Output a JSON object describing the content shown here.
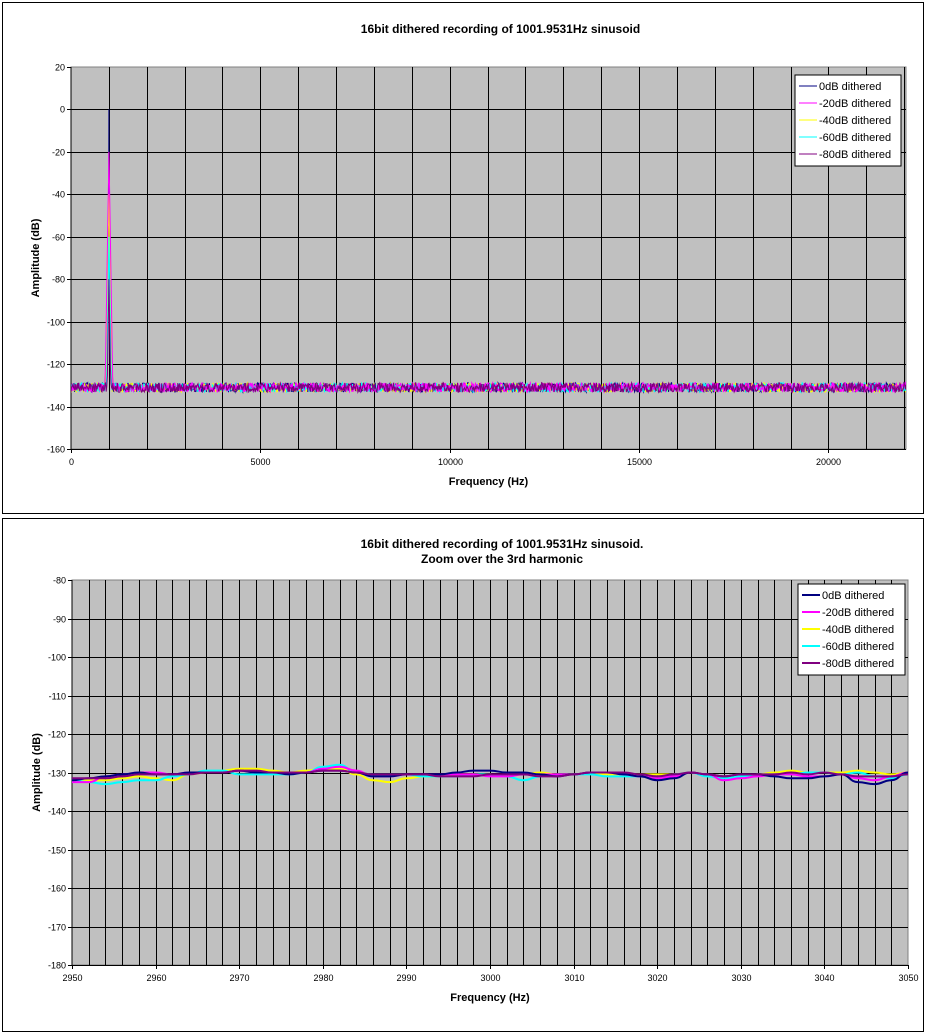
{
  "chart_data": [
    {
      "type": "line",
      "title": [
        "16bit dithered recording of 1001.9531Hz sinusoid"
      ],
      "xlabel": "Frequency (Hz)",
      "ylabel": "Amplitude (dB)",
      "xlim": [
        0,
        22050
      ],
      "ylim": [
        -160,
        20
      ],
      "xticks": [
        0,
        5000,
        10000,
        15000,
        20000
      ],
      "yticks": [
        -160,
        -140,
        -120,
        -100,
        -80,
        -60,
        -40,
        -20,
        0,
        20
      ],
      "x_grid_step": 1000,
      "grid": true,
      "legend_position": "top-right",
      "peak_frequency": 1001.9531,
      "noise_floor": -131,
      "series": [
        {
          "name": "0dB dithered",
          "color": "#000080",
          "peak": 0
        },
        {
          "name": "-20dB dithered",
          "color": "#ff00ff",
          "peak": -20
        },
        {
          "name": "-40dB dithered",
          "color": "#ffff00",
          "peak": -40
        },
        {
          "name": "-60dB dithered",
          "color": "#00ffff",
          "peak": -60
        },
        {
          "name": "-80dB dithered",
          "color": "#800080",
          "peak": -80
        }
      ]
    },
    {
      "type": "line",
      "title": [
        "16bit dithered recording of 1001.9531Hz sinusoid.",
        "Zoom over the 3rd harmonic"
      ],
      "xlabel": "Frequency (Hz)",
      "ylabel": "Amplitude (dB)",
      "xlim": [
        2950,
        3050
      ],
      "ylim": [
        -180,
        -80
      ],
      "xticks": [
        2950,
        2960,
        2970,
        2980,
        2990,
        3000,
        3010,
        3020,
        3030,
        3040,
        3050
      ],
      "yticks": [
        -180,
        -170,
        -160,
        -150,
        -140,
        -130,
        -120,
        -110,
        -100,
        -90,
        -80
      ],
      "x_grid_step": 2,
      "grid": true,
      "legend_position": "top-right",
      "x": [
        2950,
        2952,
        2954,
        2956,
        2958,
        2960,
        2962,
        2964,
        2966,
        2968,
        2970,
        2972,
        2974,
        2976,
        2978,
        2980,
        2982,
        2984,
        2986,
        2988,
        2990,
        2992,
        2994,
        2996,
        2998,
        3000,
        3002,
        3004,
        3006,
        3008,
        3010,
        3012,
        3014,
        3016,
        3018,
        3020,
        3022,
        3024,
        3026,
        3028,
        3030,
        3032,
        3034,
        3036,
        3038,
        3040,
        3042,
        3044,
        3046,
        3048,
        3050
      ],
      "series": [
        {
          "name": "0dB dithered",
          "color": "#000080",
          "values": [
            -132,
            -131.5,
            -131,
            -130.5,
            -130,
            -130.5,
            -130.5,
            -130,
            -130,
            -130,
            -129.5,
            -130,
            -130,
            -130.5,
            -130,
            -129.5,
            -129.5,
            -130,
            -131,
            -131,
            -130.5,
            -130.5,
            -130.5,
            -130,
            -129.5,
            -129.5,
            -130,
            -130,
            -130.5,
            -131,
            -130.5,
            -130,
            -130,
            -130.5,
            -131,
            -132,
            -131.5,
            -130,
            -130.5,
            -131,
            -130.5,
            -130.5,
            -131,
            -131.5,
            -131.5,
            -131,
            -130.5,
            -132.5,
            -133,
            -132,
            -130
          ]
        },
        {
          "name": "-20dB dithered",
          "color": "#ff00ff",
          "values": [
            -132.5,
            -132.5,
            -131,
            -130.5,
            -130,
            -130,
            -130.5,
            -130,
            -130,
            -130,
            -129.5,
            -130,
            -130,
            -130,
            -130,
            -129,
            -128.5,
            -129.5,
            -131,
            -131,
            -130.5,
            -130.5,
            -130.5,
            -130.5,
            -130.5,
            -131,
            -131,
            -130.5,
            -130.5,
            -130.5,
            -130.5,
            -130,
            -130,
            -130.5,
            -131,
            -131.5,
            -131,
            -130,
            -130.5,
            -132,
            -131.5,
            -131,
            -130.5,
            -130.5,
            -131,
            -131,
            -130.5,
            -131.5,
            -132,
            -131,
            -130
          ]
        },
        {
          "name": "-40dB dithered",
          "color": "#ffff00",
          "values": [
            -132,
            -132,
            -132,
            -131.5,
            -131,
            -131.5,
            -132,
            -130.5,
            -130,
            -129.5,
            -129,
            -129,
            -129.5,
            -130,
            -129.5,
            -129,
            -129,
            -130.5,
            -132,
            -132.5,
            -131.5,
            -131,
            -131,
            -130.5,
            -130.5,
            -130.5,
            -131,
            -130.5,
            -130,
            -130.5,
            -130.5,
            -130,
            -130.5,
            -130.5,
            -130.5,
            -130.5,
            -130.5,
            -130,
            -130.5,
            -131,
            -131,
            -130.5,
            -130,
            -129.5,
            -130,
            -130,
            -130,
            -129.5,
            -130,
            -130.5,
            -130
          ]
        },
        {
          "name": "-60dB dithered",
          "color": "#00ffff",
          "values": [
            -132,
            -132.5,
            -133,
            -132.5,
            -132,
            -132,
            -131,
            -130.5,
            -129.5,
            -129.5,
            -130.5,
            -130.5,
            -130.5,
            -130.5,
            -130,
            -128.5,
            -128,
            -130,
            -130.5,
            -130.5,
            -130.5,
            -131,
            -131,
            -131,
            -130.5,
            -130.5,
            -131,
            -132,
            -131,
            -130.5,
            -130.5,
            -130.5,
            -131,
            -131,
            -131,
            -131.5,
            -130.5,
            -130,
            -131,
            -131.5,
            -131,
            -130.5,
            -130.5,
            -130.5,
            -130,
            -130,
            -130.5,
            -130,
            -131,
            -131.5,
            -130.5
          ]
        },
        {
          "name": "-80dB dithered",
          "color": "#800080",
          "values": [
            -131.5,
            -131.5,
            -131.5,
            -131,
            -130.5,
            -130.5,
            -130.5,
            -130.5,
            -130,
            -130,
            -129.5,
            -129.5,
            -130,
            -130,
            -130,
            -129.5,
            -129.5,
            -130,
            -130.5,
            -130.5,
            -130.5,
            -130.5,
            -131,
            -131,
            -131,
            -130.5,
            -130.5,
            -130.5,
            -131,
            -131,
            -130.5,
            -130,
            -130,
            -130,
            -130.5,
            -131,
            -130.5,
            -130,
            -130.5,
            -131,
            -130.5,
            -130.5,
            -130.5,
            -130,
            -130.5,
            -130,
            -130.5,
            -131,
            -131,
            -131,
            -130.5
          ]
        }
      ]
    }
  ]
}
